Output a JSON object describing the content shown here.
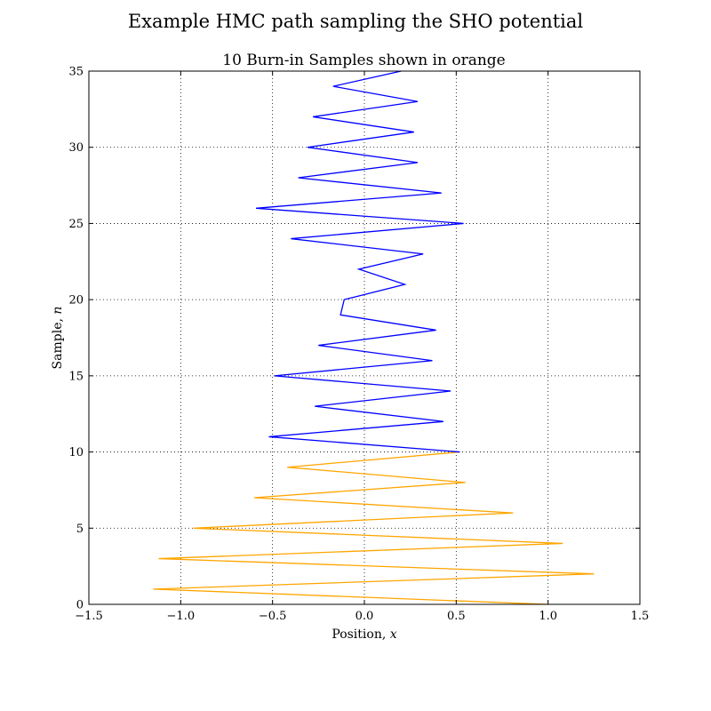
{
  "chart_data": {
    "type": "line",
    "title": "Example HMC path sampling the SHO potential",
    "subtitle": "10 Burn-in Samples shown in orange",
    "xlabel": "Position, ",
    "xlabel_var": "x",
    "ylabel": "Sample, ",
    "ylabel_var": "n",
    "xlim": [
      -1.5,
      1.5
    ],
    "ylim": [
      0,
      35
    ],
    "xticks": [
      -1.5,
      -1.0,
      -0.5,
      0.0,
      0.5,
      1.0,
      1.5
    ],
    "xtick_labels": [
      "−1.5",
      "−1.0",
      "−0.5",
      "0.0",
      "0.5",
      "1.0",
      "1.5"
    ],
    "yticks": [
      0,
      5,
      10,
      15,
      20,
      25,
      30,
      35
    ],
    "ytick_labels": [
      "0",
      "5",
      "10",
      "15",
      "20",
      "25",
      "30",
      "35"
    ],
    "grid": true,
    "grid_style": "dotted",
    "series": [
      {
        "color": "#ffa500",
        "points": [
          [
            1.0,
            0
          ],
          [
            -1.15,
            1
          ],
          [
            1.25,
            2
          ],
          [
            -1.12,
            3
          ],
          [
            1.08,
            4
          ],
          [
            -0.93,
            5
          ],
          [
            0.81,
            6
          ],
          [
            -0.6,
            7
          ],
          [
            0.55,
            8
          ],
          [
            -0.42,
            9
          ],
          [
            0.52,
            10
          ]
        ]
      },
      {
        "color": "#0000ff",
        "points": [
          [
            0.52,
            10
          ],
          [
            -0.52,
            11
          ],
          [
            0.43,
            12
          ],
          [
            -0.27,
            13
          ],
          [
            0.47,
            14
          ],
          [
            -0.49,
            15
          ],
          [
            0.37,
            16
          ],
          [
            -0.25,
            17
          ],
          [
            0.39,
            18
          ],
          [
            -0.13,
            19
          ],
          [
            -0.11,
            20
          ],
          [
            0.22,
            21
          ],
          [
            -0.03,
            22
          ],
          [
            0.32,
            23
          ],
          [
            -0.4,
            24
          ],
          [
            0.54,
            25
          ],
          [
            -0.59,
            26
          ],
          [
            0.42,
            27
          ],
          [
            -0.36,
            28
          ],
          [
            0.29,
            29
          ],
          [
            -0.31,
            30
          ],
          [
            0.27,
            31
          ],
          [
            -0.28,
            32
          ],
          [
            0.29,
            33
          ],
          [
            -0.17,
            34
          ],
          [
            0.2,
            35
          ]
        ]
      }
    ]
  }
}
